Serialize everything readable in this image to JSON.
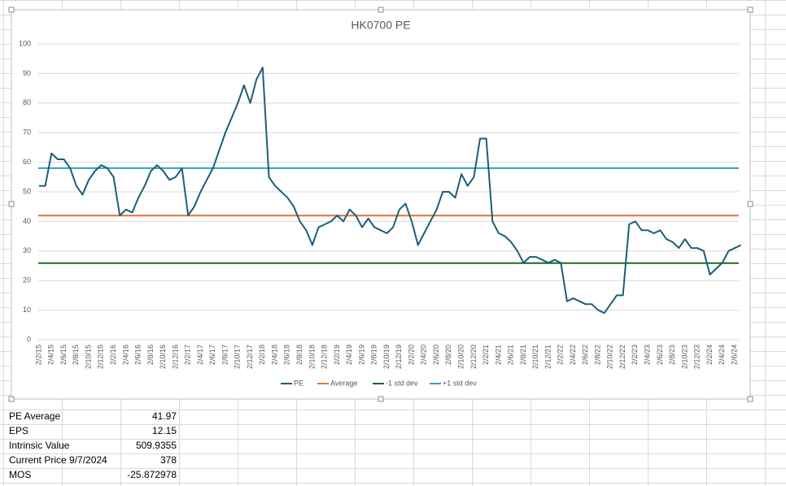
{
  "chart_data": {
    "type": "line",
    "title": "HK0700 PE",
    "categories": [
      "2/2/15",
      null,
      "2/4/15",
      null,
      "2/6/15",
      null,
      "2/8/15",
      null,
      "2/10/15",
      null,
      "2/12/15",
      null,
      "2/2/16",
      null,
      "2/4/16",
      null,
      "2/6/16",
      null,
      "2/8/16",
      null,
      "2/10/16",
      null,
      "2/12/16",
      null,
      "2/2/17",
      null,
      "2/4/17",
      null,
      "2/6/17",
      null,
      "2/8/17",
      null,
      "2/10/17",
      null,
      "2/12/17",
      null,
      "2/2/18",
      null,
      "2/4/18",
      null,
      "2/6/18",
      null,
      "2/8/18",
      null,
      "2/10/18",
      null,
      "2/12/18",
      null,
      "2/2/19",
      null,
      "2/4/19",
      null,
      "2/6/19",
      null,
      "2/8/19",
      null,
      "2/10/19",
      null,
      "2/12/19",
      null,
      "2/2/20",
      null,
      "2/4/20",
      null,
      "2/6/20",
      null,
      "2/8/20",
      null,
      "2/10/20",
      null,
      "2/12/20",
      null,
      "2/2/21",
      null,
      "2/4/21",
      null,
      "2/6/21",
      null,
      "2/8/21",
      null,
      "2/10/21",
      null,
      "2/12/21",
      null,
      "2/2/22",
      null,
      "2/4/22",
      null,
      "2/6/22",
      null,
      "2/8/22",
      null,
      "2/10/22",
      null,
      "2/12/22",
      null,
      "2/2/23",
      null,
      "2/4/23",
      null,
      "2/6/23",
      null,
      "2/8/23",
      null,
      "2/10/23",
      null,
      "2/12/23",
      null,
      "2/2/24",
      null,
      "2/4/24",
      null,
      "2/6/24",
      null
    ],
    "series": [
      {
        "name": "PE",
        "color": "#1b5e7b",
        "values": [
          52,
          52,
          63,
          61,
          61,
          58,
          52,
          49,
          54,
          57,
          59,
          58,
          55,
          42,
          44,
          43,
          48,
          52,
          57,
          59,
          57,
          54,
          55,
          58,
          42,
          45,
          50,
          54,
          58,
          64,
          70,
          75,
          80,
          86,
          80,
          88,
          92,
          55,
          52,
          50,
          48,
          45,
          40,
          37,
          32,
          38,
          39,
          40,
          42,
          40,
          44,
          42,
          38,
          41,
          38,
          37,
          36,
          38,
          44,
          46,
          40,
          32,
          36,
          40,
          44,
          50,
          50,
          48,
          56,
          52,
          55,
          68,
          68,
          40,
          36,
          35,
          33,
          30,
          26,
          28,
          28,
          27,
          26,
          27,
          26,
          13,
          14,
          13,
          12,
          12,
          10,
          9,
          12,
          15,
          15,
          39,
          40,
          37,
          37,
          36,
          37,
          34,
          33,
          31,
          34,
          31,
          31,
          30,
          22,
          24,
          26,
          30,
          31,
          32
        ]
      }
    ],
    "lines": [
      {
        "name": "Average",
        "color": "#e97132",
        "value": 41.97
      },
      {
        "name": "-1 std dev",
        "color": "#196b24",
        "value": 25.9
      },
      {
        "name": "+1 std dev",
        "color": "#2aa4c5",
        "value": 58
      }
    ],
    "ylim": [
      0,
      100
    ],
    "yticks": [
      0,
      10,
      20,
      30,
      40,
      50,
      60,
      70,
      80,
      90,
      100
    ],
    "grid": true
  },
  "table": {
    "rows": [
      [
        "PE Average",
        41.97
      ],
      [
        "EPS",
        12.15
      ],
      [
        "Intrinsic Value",
        509.9355
      ],
      [
        "Current Price 9/7/2024",
        378
      ],
      [
        "MOS",
        -25.872978
      ]
    ]
  }
}
